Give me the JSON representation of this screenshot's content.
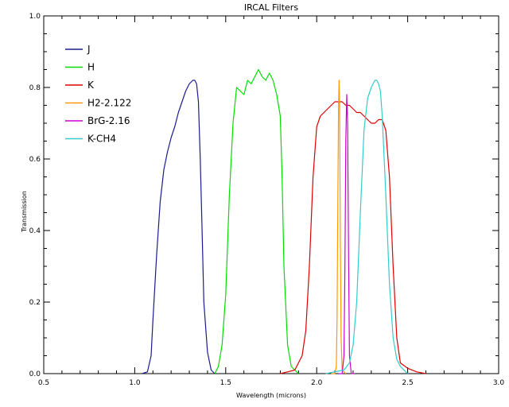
{
  "chart_data": {
    "type": "line",
    "title": "IRCAL Filters",
    "xlabel": "Wavelength (microns)",
    "ylabel": "Transmission",
    "xlim": [
      0.5,
      3.0
    ],
    "ylim": [
      0.0,
      1.0
    ],
    "x_ticks": [
      "0.5",
      "1.0",
      "1.5",
      "2.0",
      "2.5",
      "3.0"
    ],
    "y_ticks": [
      "0.0",
      "0.2",
      "0.4",
      "0.6",
      "0.8",
      "1.0"
    ],
    "grid": false,
    "legend_position": "top-left",
    "series": [
      {
        "name": "J",
        "color": "#1c1c8c",
        "x": [
          1.04,
          1.07,
          1.09,
          1.1,
          1.12,
          1.14,
          1.16,
          1.18,
          1.2,
          1.22,
          1.24,
          1.26,
          1.28,
          1.3,
          1.32,
          1.33,
          1.34,
          1.35,
          1.36,
          1.37,
          1.38,
          1.4,
          1.42,
          1.44
        ],
        "y": [
          0.0,
          0.005,
          0.05,
          0.15,
          0.33,
          0.48,
          0.57,
          0.62,
          0.66,
          0.69,
          0.73,
          0.76,
          0.79,
          0.81,
          0.82,
          0.82,
          0.81,
          0.76,
          0.6,
          0.4,
          0.2,
          0.06,
          0.01,
          0.0
        ]
      },
      {
        "name": "H",
        "color": "#00dd00",
        "x": [
          1.44,
          1.46,
          1.48,
          1.5,
          1.52,
          1.54,
          1.56,
          1.58,
          1.6,
          1.62,
          1.64,
          1.66,
          1.68,
          1.7,
          1.72,
          1.74,
          1.76,
          1.78,
          1.8,
          1.81,
          1.82,
          1.84,
          1.86,
          1.88,
          1.9
        ],
        "y": [
          0.0,
          0.02,
          0.08,
          0.22,
          0.5,
          0.7,
          0.8,
          0.79,
          0.78,
          0.82,
          0.81,
          0.83,
          0.85,
          0.83,
          0.82,
          0.84,
          0.82,
          0.78,
          0.72,
          0.55,
          0.3,
          0.08,
          0.02,
          0.01,
          0.0
        ]
      },
      {
        "name": "K",
        "color": "#dd0000",
        "x": [
          1.8,
          1.84,
          1.88,
          1.92,
          1.94,
          1.96,
          1.98,
          2.0,
          2.02,
          2.04,
          2.06,
          2.08,
          2.1,
          2.12,
          2.14,
          2.16,
          2.18,
          2.2,
          2.22,
          2.24,
          2.26,
          2.28,
          2.3,
          2.32,
          2.34,
          2.36,
          2.38,
          2.4,
          2.42,
          2.44,
          2.46,
          2.5,
          2.55,
          2.6
        ],
        "y": [
          0.0,
          0.005,
          0.01,
          0.05,
          0.12,
          0.3,
          0.55,
          0.69,
          0.72,
          0.73,
          0.74,
          0.75,
          0.76,
          0.76,
          0.76,
          0.75,
          0.75,
          0.74,
          0.73,
          0.73,
          0.72,
          0.71,
          0.7,
          0.7,
          0.71,
          0.71,
          0.68,
          0.55,
          0.3,
          0.1,
          0.03,
          0.015,
          0.005,
          0.0
        ]
      },
      {
        "name": "H2-2.122",
        "color": "#ff9900",
        "x": [
          2.08,
          2.1,
          2.108,
          2.112,
          2.116,
          2.12,
          2.123,
          2.126,
          2.13,
          2.134,
          2.14,
          2.16
        ],
        "y": [
          0.0,
          0.0,
          0.02,
          0.15,
          0.45,
          0.75,
          0.82,
          0.75,
          0.4,
          0.1,
          0.01,
          0.0
        ]
      },
      {
        "name": "BrG-2.16",
        "color": "#cc00cc",
        "x": [
          2.12,
          2.14,
          2.15,
          2.155,
          2.16,
          2.165,
          2.17,
          2.175,
          2.18,
          2.19,
          2.21
        ],
        "y": [
          0.0,
          0.0,
          0.05,
          0.3,
          0.65,
          0.78,
          0.7,
          0.35,
          0.05,
          0.0,
          0.0
        ]
      },
      {
        "name": "K-CH4",
        "color": "#33cccc",
        "x": [
          2.05,
          2.15,
          2.18,
          2.2,
          2.22,
          2.24,
          2.26,
          2.28,
          2.3,
          2.32,
          2.33,
          2.34,
          2.35,
          2.36,
          2.38,
          2.4,
          2.42,
          2.44,
          2.46,
          2.5
        ],
        "y": [
          0.0,
          0.01,
          0.03,
          0.08,
          0.2,
          0.45,
          0.68,
          0.77,
          0.8,
          0.82,
          0.82,
          0.81,
          0.79,
          0.72,
          0.5,
          0.25,
          0.1,
          0.04,
          0.02,
          0.0
        ]
      }
    ]
  }
}
